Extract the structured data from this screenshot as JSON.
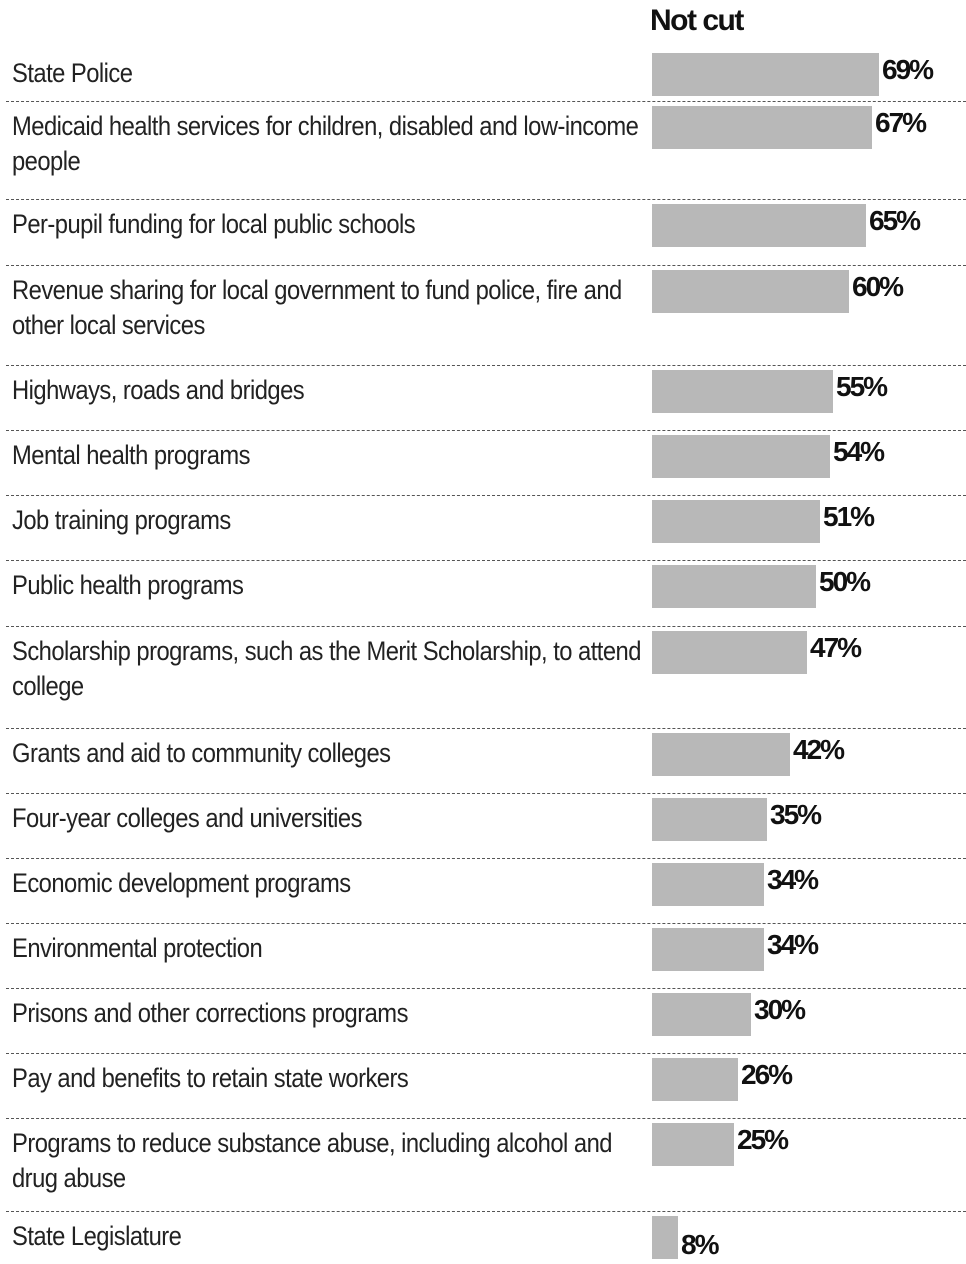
{
  "chart_data": {
    "type": "bar",
    "orientation": "horizontal",
    "series": [
      {
        "name": "Not cut",
        "values": [
          69,
          67,
          65,
          60,
          55,
          54,
          51,
          50,
          47,
          42,
          35,
          34,
          34,
          30,
          26,
          25,
          8
        ]
      }
    ],
    "categories": [
      "State Police",
      "Medicaid health services for children, disabled and low-income people",
      "Per-pupil funding for local public schools",
      "Revenue sharing for local government to fund police, fire and other local services",
      "Highways, roads and bridges",
      "Mental health programs",
      "Job training programs",
      "Public health programs",
      "Scholarship programs, such as the Merit Scholarship, to attend college",
      "Grants and aid to community colleges",
      "Four-year colleges and universities",
      "Economic development programs",
      "Environmental protection",
      "Prisons and other corrections programs",
      "Pay and benefits to retain state workers",
      "Programs to reduce substance abuse, including alcohol and drug abuse",
      "State Legislature"
    ],
    "value_labels": [
      "69%",
      "67%",
      "65%",
      "60%",
      "55%",
      "54%",
      "51%",
      "50%",
      "47%",
      "42%",
      "35%",
      "34%",
      "34%",
      "30%",
      "26%",
      "25%",
      "8%"
    ],
    "unit": "%",
    "xlim": [
      0,
      100
    ],
    "grid": false,
    "legend": "none"
  },
  "colors": {
    "bar": "#b8b8b8",
    "text": "#222222",
    "divider": "#555555"
  }
}
